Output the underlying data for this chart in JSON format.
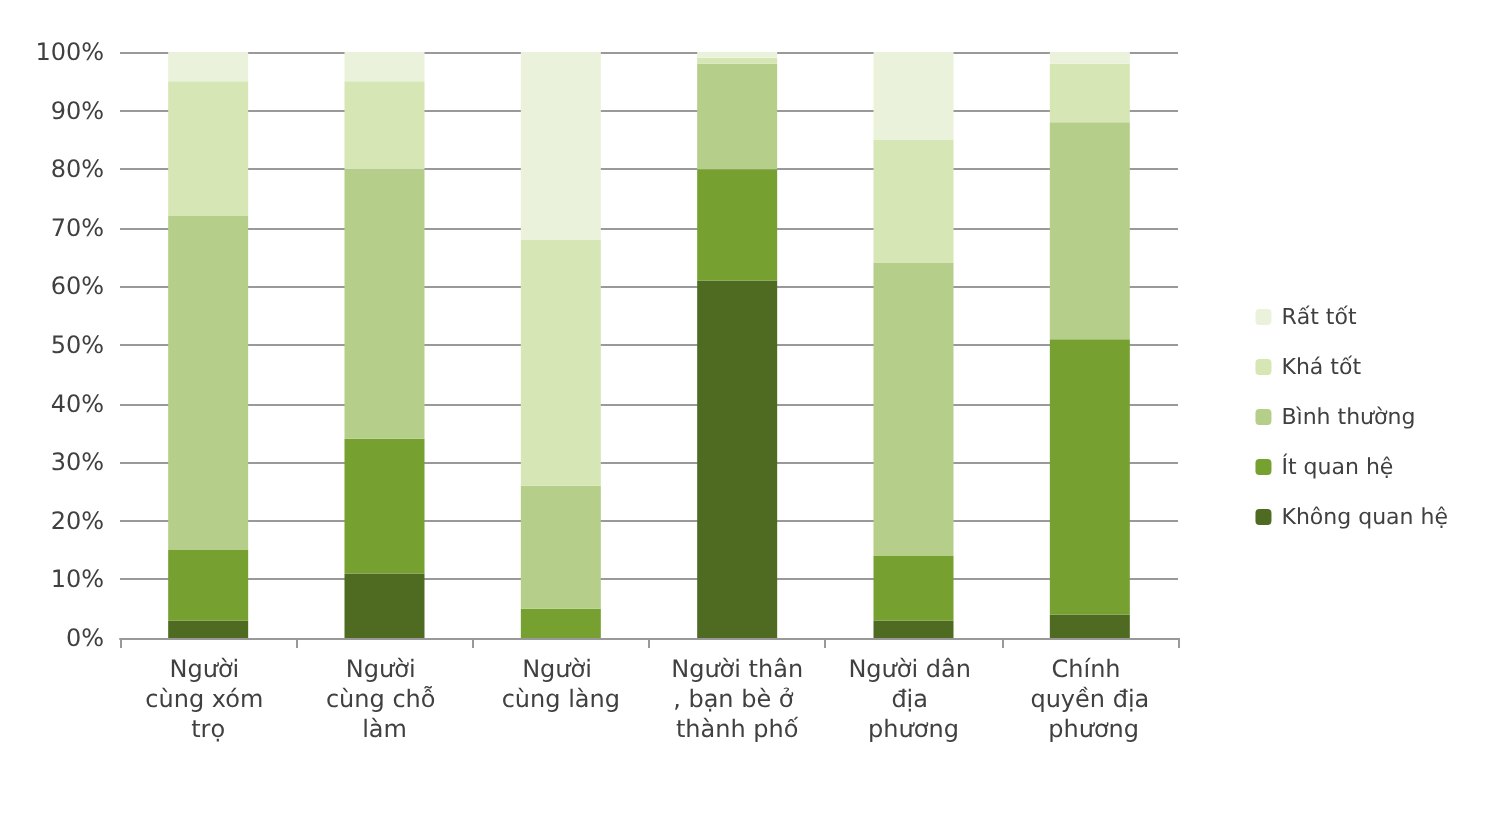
{
  "chart_data": {
    "type": "bar",
    "stacked": true,
    "categories": [
      "Người cùng xóm trọ",
      "Người cùng chỗ làm",
      "Người cùng làng",
      "Người thân, bạn bè ở thành phố",
      "Người dân địa phương",
      "Chính quyền địa phương"
    ],
    "series": [
      {
        "name": "Không quan hệ",
        "color": "#4f6b22",
        "values": [
          3,
          11,
          0,
          61,
          3,
          4
        ]
      },
      {
        "name": "Ít quan hệ",
        "color": "#76a030",
        "values": [
          12,
          23,
          5,
          19,
          11,
          47
        ]
      },
      {
        "name": "Bình thường",
        "color": "#b5cf8a",
        "values": [
          57,
          46,
          21,
          18,
          50,
          37
        ]
      },
      {
        "name": "Khá tốt",
        "color": "#d6e6b5",
        "values": [
          23,
          15,
          42,
          1,
          21,
          10
        ]
      },
      {
        "name": "Rất tốt",
        "color": "#eaf2dc",
        "values": [
          5,
          5,
          32,
          1,
          15,
          2
        ]
      }
    ],
    "ylim": [
      0,
      100
    ],
    "yticks": [
      {
        "value": 0,
        "label": "0%"
      },
      {
        "value": 10,
        "label": "10%"
      },
      {
        "value": 20,
        "label": "20%"
      },
      {
        "value": 30,
        "label": "30%"
      },
      {
        "value": 40,
        "label": "40%"
      },
      {
        "value": 50,
        "label": "50%"
      },
      {
        "value": 60,
        "label": "60%"
      },
      {
        "value": 70,
        "label": "70%"
      },
      {
        "value": 80,
        "label": "80%"
      },
      {
        "value": 90,
        "label": "90%"
      },
      {
        "value": 100,
        "label": "100%"
      }
    ],
    "grid": "y",
    "legend": "right"
  }
}
